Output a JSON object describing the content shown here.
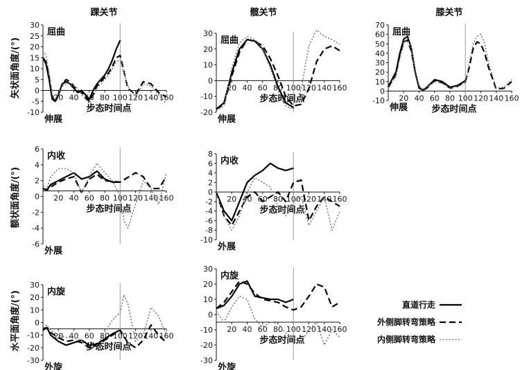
{
  "row_labels": [
    "矢状面角度/(°)",
    "额状面角度/(°)",
    "水平面角度/(°)"
  ],
  "xlabel": "步态时间点",
  "legend": [
    {
      "name": "直道行走",
      "dash": "none",
      "width": 2.2,
      "color": "#000000"
    },
    {
      "name": "外侧脚转弯策略",
      "dash": "9,5",
      "width": 2.2,
      "color": "#000000"
    },
    {
      "name": "内侧脚转弯策略",
      "dash": "2,2.5",
      "width": 1.6,
      "color": "#777777"
    }
  ],
  "chart_data": [
    {
      "type": "line",
      "title": "踝关节",
      "x": [
        0,
        20,
        40,
        60,
        80,
        100,
        120,
        140,
        160
      ],
      "xticks": [
        20,
        40,
        60,
        80,
        100,
        120,
        140,
        160
      ],
      "ylim": [
        -10,
        30
      ],
      "yticks": [
        -10,
        -5,
        0,
        5,
        10,
        15,
        20,
        25,
        30
      ],
      "top_label": "屈曲",
      "bottom_label": "伸展",
      "vline": 100,
      "x_axis_at": 0,
      "series": [
        {
          "name": "直道行走",
          "x": [
            0,
            4,
            8,
            12,
            16,
            20,
            25,
            30,
            35,
            40,
            45,
            50,
            55,
            60,
            65,
            70,
            75,
            80,
            85,
            90,
            95,
            100
          ],
          "y": [
            15,
            12,
            5,
            -4,
            -5,
            -2,
            3,
            4,
            3,
            1,
            -1,
            0,
            -2,
            -4,
            0,
            3,
            5,
            7,
            10,
            14,
            19,
            23
          ]
        },
        {
          "name": "外侧脚转弯策略",
          "x": [
            0,
            4,
            8,
            12,
            16,
            20,
            25,
            30,
            35,
            40,
            45,
            50,
            55,
            60,
            65,
            70,
            75,
            80,
            85,
            90,
            95,
            100,
            110,
            120,
            130,
            140,
            150,
            160
          ],
          "y": [
            15,
            13,
            6,
            -3,
            -5,
            -2,
            3,
            5,
            4,
            2,
            0,
            -1,
            -3,
            -5,
            -2,
            2,
            4,
            6,
            8,
            11,
            15,
            16,
            1,
            -2,
            4,
            3,
            -1,
            -3
          ]
        },
        {
          "name": "内侧脚转弯策略",
          "x": [
            0,
            4,
            8,
            12,
            16,
            20,
            25,
            30,
            35,
            40,
            45,
            50,
            55,
            60,
            65,
            70,
            75,
            80,
            85,
            90,
            95,
            100,
            110,
            120,
            130,
            140,
            150,
            160
          ],
          "y": [
            18,
            16,
            8,
            -2,
            -4,
            -1,
            2,
            3,
            3,
            2,
            1,
            -2,
            -4,
            -6,
            -3,
            1,
            3,
            5,
            7,
            10,
            13,
            14,
            2,
            -3,
            3,
            2,
            -2,
            -6
          ]
        }
      ]
    },
    {
      "type": "line",
      "title": "髋关节",
      "x": [
        0,
        20,
        40,
        60,
        80,
        100,
        120,
        140,
        160
      ],
      "xticks": [
        20,
        40,
        60,
        80,
        100,
        120,
        140,
        160
      ],
      "ylim": [
        -20,
        30
      ],
      "yticks": [
        -20,
        -10,
        0,
        10,
        20,
        30
      ],
      "top_label": "屈曲",
      "bottom_label": "伸展",
      "vline": 100,
      "x_axis_at": 0,
      "series": [
        {
          "name": "直道行走",
          "x": [
            0,
            10,
            20,
            30,
            40,
            50,
            60,
            70,
            80,
            90,
            100
          ],
          "y": [
            -18,
            -14,
            5,
            20,
            26,
            25,
            20,
            10,
            -4,
            -14,
            -17
          ]
        },
        {
          "name": "外侧脚转弯策略",
          "x": [
            0,
            10,
            20,
            30,
            40,
            50,
            60,
            70,
            80,
            90,
            100,
            110,
            120,
            130,
            140,
            150,
            160
          ],
          "y": [
            -18,
            -15,
            3,
            18,
            26,
            25,
            22,
            14,
            3,
            -10,
            -16,
            -15,
            -5,
            12,
            20,
            22,
            19
          ]
        },
        {
          "name": "内侧脚转弯策略",
          "x": [
            0,
            10,
            20,
            30,
            40,
            50,
            60,
            70,
            80,
            90,
            100,
            110,
            120,
            130,
            140,
            150,
            160
          ],
          "y": [
            -19,
            -16,
            8,
            24,
            28,
            26,
            20,
            8,
            -6,
            -16,
            -18,
            -5,
            22,
            32,
            28,
            26,
            23
          ]
        }
      ]
    },
    {
      "type": "line",
      "title": "膝关节",
      "x": [
        0,
        20,
        40,
        60,
        80,
        100,
        120,
        140,
        160
      ],
      "xticks": [
        20,
        40,
        60,
        80,
        100,
        120,
        140,
        160
      ],
      "ylim": [
        -10,
        70
      ],
      "yticks": [
        -10,
        0,
        10,
        20,
        30,
        40,
        50,
        60,
        70
      ],
      "top_label": "屈曲",
      "bottom_label": "伸展",
      "vline": 100,
      "x_axis_at": 0,
      "series": [
        {
          "name": "直道行走",
          "x": [
            0,
            10,
            15,
            20,
            25,
            30,
            35,
            40,
            45,
            50,
            60,
            70,
            80,
            90,
            100
          ],
          "y": [
            5,
            20,
            40,
            55,
            58,
            45,
            20,
            3,
            1,
            4,
            12,
            10,
            4,
            6,
            11
          ]
        },
        {
          "name": "外侧脚转弯策略",
          "x": [
            0,
            10,
            15,
            20,
            25,
            30,
            35,
            40,
            45,
            50,
            60,
            70,
            80,
            90,
            100,
            105,
            110,
            115,
            120,
            125,
            130,
            140,
            150,
            160
          ],
          "y": [
            4,
            18,
            38,
            52,
            54,
            42,
            20,
            4,
            1,
            3,
            11,
            9,
            3,
            5,
            10,
            25,
            45,
            52,
            50,
            40,
            25,
            2,
            3,
            10
          ]
        },
        {
          "name": "内侧脚转弯策略",
          "x": [
            0,
            10,
            15,
            20,
            25,
            30,
            35,
            40,
            45,
            50,
            60,
            70,
            80,
            90,
            100,
            105,
            110,
            115,
            120,
            125,
            130,
            140,
            150,
            160
          ],
          "y": [
            3,
            15,
            35,
            50,
            55,
            45,
            22,
            5,
            2,
            4,
            10,
            8,
            3,
            5,
            9,
            30,
            50,
            58,
            60,
            50,
            30,
            3,
            4,
            12
          ]
        }
      ]
    },
    {
      "type": "line",
      "title": "",
      "x": [
        0,
        20,
        40,
        60,
        80,
        100,
        120,
        140,
        160
      ],
      "xticks": [
        20,
        40,
        60,
        80,
        100,
        120,
        140,
        160
      ],
      "ylim": [
        -6,
        6
      ],
      "yticks": [
        -6,
        -4,
        -2,
        0,
        2,
        4,
        6
      ],
      "top_label": "内收",
      "bottom_label": "外展",
      "vline": 100,
      "x_axis_at": 0.7,
      "series": [
        {
          "name": "直道行走",
          "x": [
            0,
            5,
            10,
            20,
            30,
            40,
            50,
            60,
            70,
            80,
            90,
            100
          ],
          "y": [
            1,
            0.8,
            1.5,
            2,
            2.5,
            3,
            2.2,
            2.5,
            3.2,
            2.2,
            1.8,
            1.8
          ]
        },
        {
          "name": "外侧脚转弯策略",
          "x": [
            0,
            5,
            10,
            20,
            30,
            40,
            50,
            60,
            70,
            80,
            90,
            100,
            110,
            120,
            130,
            140,
            150,
            160
          ],
          "y": [
            1,
            0.8,
            1.2,
            1.8,
            2.2,
            2.5,
            0.5,
            2.2,
            2.8,
            2,
            1.9,
            1.8,
            2.4,
            3,
            2.5,
            1,
            1,
            2.5
          ]
        },
        {
          "name": "内侧脚转弯策略",
          "x": [
            0,
            5,
            10,
            20,
            30,
            40,
            50,
            60,
            70,
            80,
            90,
            100,
            105,
            110,
            120,
            130,
            140,
            150,
            160
          ],
          "y": [
            1.3,
            1,
            2.5,
            3.5,
            3.5,
            3,
            0.5,
            2.5,
            4.2,
            3,
            2,
            0,
            -3,
            -4,
            -1,
            2,
            1,
            -1,
            3
          ]
        }
      ]
    },
    {
      "type": "line",
      "title": "",
      "x": [
        0,
        20,
        40,
        60,
        80,
        100,
        120,
        140,
        160
      ],
      "xticks": [
        20,
        40,
        60,
        80,
        100,
        120,
        140,
        160
      ],
      "ylim": [
        -10,
        8
      ],
      "yticks": [
        -10,
        -8,
        -6,
        -4,
        -2,
        0,
        2,
        4,
        6,
        8
      ],
      "top_label": "内收",
      "bottom_label": "外展",
      "vline": 100,
      "x_axis_at": 0,
      "series": [
        {
          "name": "直道行走",
          "x": [
            0,
            10,
            20,
            30,
            40,
            50,
            60,
            70,
            80,
            90,
            100
          ],
          "y": [
            0,
            -4,
            -6,
            -2,
            2,
            3.5,
            4.5,
            6,
            5,
            4.5,
            5
          ]
        },
        {
          "name": "外侧脚转弯策略",
          "x": [
            0,
            10,
            20,
            30,
            40,
            50,
            60,
            70,
            80,
            90,
            100,
            110,
            120,
            130,
            140,
            150,
            160
          ],
          "y": [
            0,
            -5,
            -7,
            -4,
            -1,
            0,
            -2,
            -1,
            0,
            -2,
            2,
            2.5,
            -6,
            -3,
            -1,
            -2,
            -3
          ]
        },
        {
          "name": "内侧脚转弯策略",
          "x": [
            0,
            10,
            20,
            30,
            40,
            50,
            60,
            70,
            80,
            90,
            100,
            110,
            120,
            130,
            140,
            150,
            160
          ],
          "y": [
            0,
            -5,
            -8,
            -5,
            0,
            3,
            2,
            1,
            -3,
            -5,
            -2,
            -1,
            -7,
            -4,
            -1,
            -8,
            -4
          ]
        }
      ]
    },
    {
      "type": "line",
      "title": "",
      "x": [
        0,
        20,
        40,
        60,
        80,
        100,
        120,
        140,
        160
      ],
      "xticks": [
        20,
        40,
        60,
        80,
        100,
        120,
        140,
        160
      ],
      "ylim": [
        -30,
        30
      ],
      "yticks": [
        -30,
        -20,
        -10,
        0,
        10,
        20,
        30
      ],
      "top_label": "内旋",
      "bottom_label": "外旋",
      "vline": 100,
      "x_axis_at": -5,
      "series": [
        {
          "name": "直道行走",
          "x": [
            0,
            5,
            10,
            20,
            30,
            40,
            50,
            60,
            70,
            80,
            90,
            100
          ],
          "y": [
            -6,
            -4,
            -10,
            -15,
            -18,
            -16,
            -14,
            -18,
            -17,
            -13,
            -9,
            -6
          ]
        },
        {
          "name": "外侧脚转弯策略",
          "x": [
            0,
            5,
            10,
            20,
            30,
            40,
            50,
            60,
            70,
            80,
            90,
            100,
            110,
            120,
            130,
            140,
            150,
            160
          ],
          "y": [
            -5,
            -4,
            -8,
            -12,
            -15,
            -14,
            -16,
            -20,
            -18,
            -14,
            -10,
            -6,
            -16,
            -20,
            -14,
            -2,
            -10,
            -16
          ]
        },
        {
          "name": "内侧脚转弯策略",
          "x": [
            0,
            5,
            10,
            20,
            30,
            40,
            50,
            60,
            70,
            80,
            90,
            100,
            105,
            110,
            120,
            130,
            140,
            150,
            160
          ],
          "y": [
            -4,
            -2,
            -6,
            -10,
            -12,
            -12,
            -14,
            -22,
            -18,
            -8,
            2,
            8,
            22,
            15,
            -15,
            -10,
            12,
            5,
            -10
          ]
        }
      ]
    },
    {
      "type": "line",
      "title": "",
      "x": [
        0,
        20,
        40,
        60,
        80,
        100,
        120,
        140,
        160
      ],
      "xticks": [
        20,
        40,
        60,
        80,
        100,
        120,
        140,
        160
      ],
      "ylim": [
        -30,
        30
      ],
      "yticks": [
        -30,
        -20,
        -10,
        0,
        10,
        20,
        30
      ],
      "top_label": "内旋",
      "bottom_label": "外旋",
      "vline": 100,
      "x_axis_at": -5,
      "series": [
        {
          "name": "直道行走",
          "x": [
            0,
            10,
            20,
            30,
            40,
            50,
            60,
            70,
            80,
            90,
            100
          ],
          "y": [
            4,
            6,
            12,
            20,
            22,
            12,
            11,
            10,
            10,
            8,
            10
          ]
        },
        {
          "name": "外侧脚转弯策略",
          "x": [
            0,
            10,
            20,
            30,
            40,
            50,
            60,
            70,
            80,
            90,
            100,
            110,
            120,
            130,
            140,
            150,
            160
          ],
          "y": [
            4,
            8,
            15,
            22,
            20,
            14,
            10,
            9,
            8,
            5,
            3,
            5,
            12,
            20,
            18,
            5,
            8
          ]
        },
        {
          "name": "内侧脚转弯策略",
          "x": [
            0,
            10,
            20,
            30,
            40,
            50,
            60,
            70,
            80,
            90,
            100,
            110,
            120,
            130,
            140,
            150,
            160
          ],
          "y": [
            2,
            -5,
            5,
            12,
            10,
            -3,
            -8,
            -5,
            -6,
            -12,
            -15,
            -18,
            -10,
            -5,
            -20,
            -10,
            -15
          ]
        }
      ]
    }
  ]
}
